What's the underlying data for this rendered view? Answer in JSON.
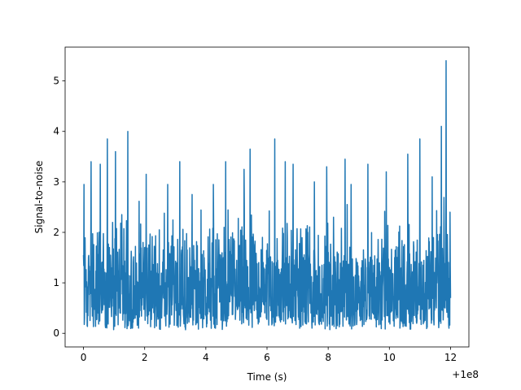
{
  "chart_data": {
    "type": "line",
    "title": "",
    "xlabel": "Time (s)",
    "ylabel": "Signal-to-noise",
    "x_offset_label": "+1e8",
    "xlim": [
      -0.6,
      12.6
    ],
    "ylim": [
      -0.27,
      5.67
    ],
    "xticks": [
      0,
      2,
      4,
      6,
      8,
      10,
      12
    ],
    "xtick_labels": [
      "0",
      "2",
      "4",
      "6",
      "8",
      "10",
      "12"
    ],
    "yticks": [
      0,
      1,
      2,
      3,
      4,
      5
    ],
    "ytick_labels": [
      "0",
      "1",
      "2",
      "3",
      "4",
      "5"
    ],
    "grid": false,
    "series": [
      {
        "color": "#1f77b4",
        "n_points": 1400,
        "x_start": 0,
        "x_end": 12,
        "baseline_mean": 1.1,
        "baseline_min": 0.07,
        "typical_high": 2.6,
        "peaks": [
          {
            "x": 0.02,
            "y": 2.95
          },
          {
            "x": 0.25,
            "y": 3.4
          },
          {
            "x": 0.55,
            "y": 3.35
          },
          {
            "x": 0.78,
            "y": 3.85
          },
          {
            "x": 1.05,
            "y": 3.6
          },
          {
            "x": 1.45,
            "y": 4.0
          },
          {
            "x": 2.05,
            "y": 3.15
          },
          {
            "x": 2.75,
            "y": 2.95
          },
          {
            "x": 3.15,
            "y": 3.4
          },
          {
            "x": 3.55,
            "y": 2.75
          },
          {
            "x": 4.25,
            "y": 2.95
          },
          {
            "x": 4.65,
            "y": 3.4
          },
          {
            "x": 5.25,
            "y": 3.25
          },
          {
            "x": 5.45,
            "y": 3.65
          },
          {
            "x": 6.25,
            "y": 3.85
          },
          {
            "x": 6.6,
            "y": 3.4
          },
          {
            "x": 6.85,
            "y": 3.35
          },
          {
            "x": 7.55,
            "y": 3.0
          },
          {
            "x": 7.95,
            "y": 3.3
          },
          {
            "x": 8.55,
            "y": 3.45
          },
          {
            "x": 8.75,
            "y": 2.95
          },
          {
            "x": 9.3,
            "y": 3.35
          },
          {
            "x": 9.9,
            "y": 3.2
          },
          {
            "x": 10.6,
            "y": 3.55
          },
          {
            "x": 11.0,
            "y": 3.85
          },
          {
            "x": 11.4,
            "y": 3.1
          },
          {
            "x": 11.7,
            "y": 4.1
          },
          {
            "x": 11.85,
            "y": 5.4
          },
          {
            "x": 11.98,
            "y": 2.4
          }
        ]
      }
    ]
  }
}
